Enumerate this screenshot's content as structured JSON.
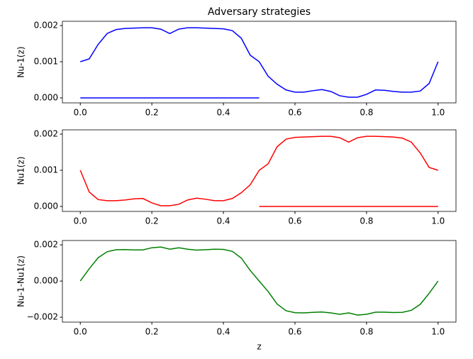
{
  "chart_data": [
    {
      "type": "line",
      "title": "Adversary strategies",
      "ylabel": "Nu-1(z)",
      "xlim": [
        -0.05,
        1.05
      ],
      "ylim": [
        -0.000137,
        0.002118
      ],
      "xticks": [
        {
          "value": 0,
          "label": "0.0"
        },
        0.2,
        0.4,
        0.6,
        0.8,
        {
          "value": 1,
          "label": "1.0"
        }
      ],
      "yticks": [
        {
          "value": 0,
          "label": "0.000"
        },
        0.001,
        0.002
      ],
      "series": [
        {
          "color": "#0000ff",
          "x": [
            0,
            0.025,
            0.05,
            0.075,
            0.1,
            0.125,
            0.15,
            0.175,
            0.2,
            0.225,
            0.25,
            0.275,
            0.3,
            0.325,
            0.35,
            0.375,
            0.4,
            0.425,
            0.45,
            0.475,
            0.5,
            0.525,
            0.55,
            0.575,
            0.6,
            0.625,
            0.65,
            0.675,
            0.7,
            0.725,
            0.75,
            0.775,
            0.8,
            0.825,
            0.85,
            0.875,
            0.9,
            0.925,
            0.95,
            0.975,
            1
          ],
          "values": [
            0.001,
            0.00108,
            0.00148,
            0.00178,
            0.00189,
            0.00192,
            0.00193,
            0.00194,
            0.00194,
            0.0019,
            0.00178,
            0.0019,
            0.00194,
            0.00194,
            0.00193,
            0.00192,
            0.00191,
            0.00186,
            0.00165,
            0.00118,
            0.001,
            0.0006,
            0.00038,
            0.00022,
            0.00016,
            0.00016,
            0.0002,
            0.00023,
            0.00018,
            6e-05,
            2e-05,
            2e-05,
            0.0001,
            0.00022,
            0.00021,
            0.00018,
            0.00016,
            0.00016,
            0.00019,
            0.0004,
            0.001
          ]
        },
        {
          "color": "#0000ff",
          "x": [
            0,
            0.5
          ],
          "values": [
            0,
            0
          ]
        }
      ]
    },
    {
      "type": "line",
      "ylabel": "Nu1(z)",
      "xlim": [
        -0.05,
        1.05
      ],
      "ylim": [
        -0.000137,
        0.002118
      ],
      "xticks": [
        {
          "value": 0,
          "label": "0.0"
        },
        0.2,
        0.4,
        0.6,
        0.8,
        {
          "value": 1,
          "label": "1.0"
        }
      ],
      "yticks": [
        {
          "value": 0,
          "label": "0.000"
        },
        0.001,
        0.002
      ],
      "series": [
        {
          "color": "#ff0000",
          "x": [
            0,
            0.025,
            0.05,
            0.075,
            0.1,
            0.125,
            0.15,
            0.175,
            0.2,
            0.225,
            0.25,
            0.275,
            0.3,
            0.325,
            0.35,
            0.375,
            0.4,
            0.425,
            0.45,
            0.475,
            0.5,
            0.525,
            0.55,
            0.575,
            0.6,
            0.625,
            0.65,
            0.675,
            0.7,
            0.725,
            0.75,
            0.775,
            0.8,
            0.825,
            0.85,
            0.875,
            0.9,
            0.925,
            0.95,
            0.975,
            1
          ],
          "values": [
            0.001,
            0.0004,
            0.00019,
            0.00016,
            0.00016,
            0.00018,
            0.00021,
            0.00022,
            0.0001,
            2e-05,
            2e-05,
            6e-05,
            0.00018,
            0.00023,
            0.0002,
            0.00016,
            0.00016,
            0.00022,
            0.00038,
            0.0006,
            0.001,
            0.00118,
            0.00165,
            0.00186,
            0.00191,
            0.00192,
            0.00193,
            0.00194,
            0.00194,
            0.0019,
            0.00178,
            0.0019,
            0.00194,
            0.00194,
            0.00193,
            0.00192,
            0.00189,
            0.00178,
            0.00148,
            0.00108,
            0.001
          ]
        },
        {
          "color": "#ff0000",
          "x": [
            0.5,
            1
          ],
          "values": [
            0,
            0
          ]
        }
      ]
    },
    {
      "type": "line",
      "ylabel": "Nu-1-Nu1(z)",
      "xlabel": "z",
      "xlim": [
        -0.05,
        1.05
      ],
      "ylim": [
        -0.00227,
        0.00224
      ],
      "xticks": [
        {
          "value": 0,
          "label": "0.0"
        },
        0.2,
        0.4,
        0.6,
        0.8,
        {
          "value": 1,
          "label": "1.0"
        }
      ],
      "yticks": [
        {
          "value": -0.002,
          "label": "−0.002"
        },
        {
          "value": 0,
          "label": "0.000"
        },
        0.002
      ],
      "series": [
        {
          "color": "#008000",
          "x": [
            0,
            0.025,
            0.05,
            0.075,
            0.1,
            0.125,
            0.15,
            0.175,
            0.2,
            0.225,
            0.25,
            0.275,
            0.3,
            0.325,
            0.35,
            0.375,
            0.4,
            0.425,
            0.45,
            0.475,
            0.5,
            0.525,
            0.55,
            0.575,
            0.6,
            0.625,
            0.65,
            0.675,
            0.7,
            0.725,
            0.75,
            0.775,
            0.8,
            0.825,
            0.85,
            0.875,
            0.9,
            0.925,
            0.95,
            0.975,
            1
          ],
          "values": [
            0,
            0.00068,
            0.00129,
            0.00162,
            0.00173,
            0.00174,
            0.00172,
            0.00172,
            0.00184,
            0.00188,
            0.00176,
            0.00184,
            0.00176,
            0.00171,
            0.00173,
            0.00176,
            0.00175,
            0.00164,
            0.00127,
            0.00058,
            0,
            -0.00058,
            -0.00127,
            -0.00164,
            -0.00175,
            -0.00176,
            -0.00173,
            -0.00171,
            -0.00176,
            -0.00184,
            -0.00176,
            -0.00188,
            -0.00184,
            -0.00172,
            -0.00172,
            -0.00174,
            -0.00173,
            -0.00162,
            -0.00129,
            -0.00068,
            0
          ]
        }
      ]
    }
  ]
}
